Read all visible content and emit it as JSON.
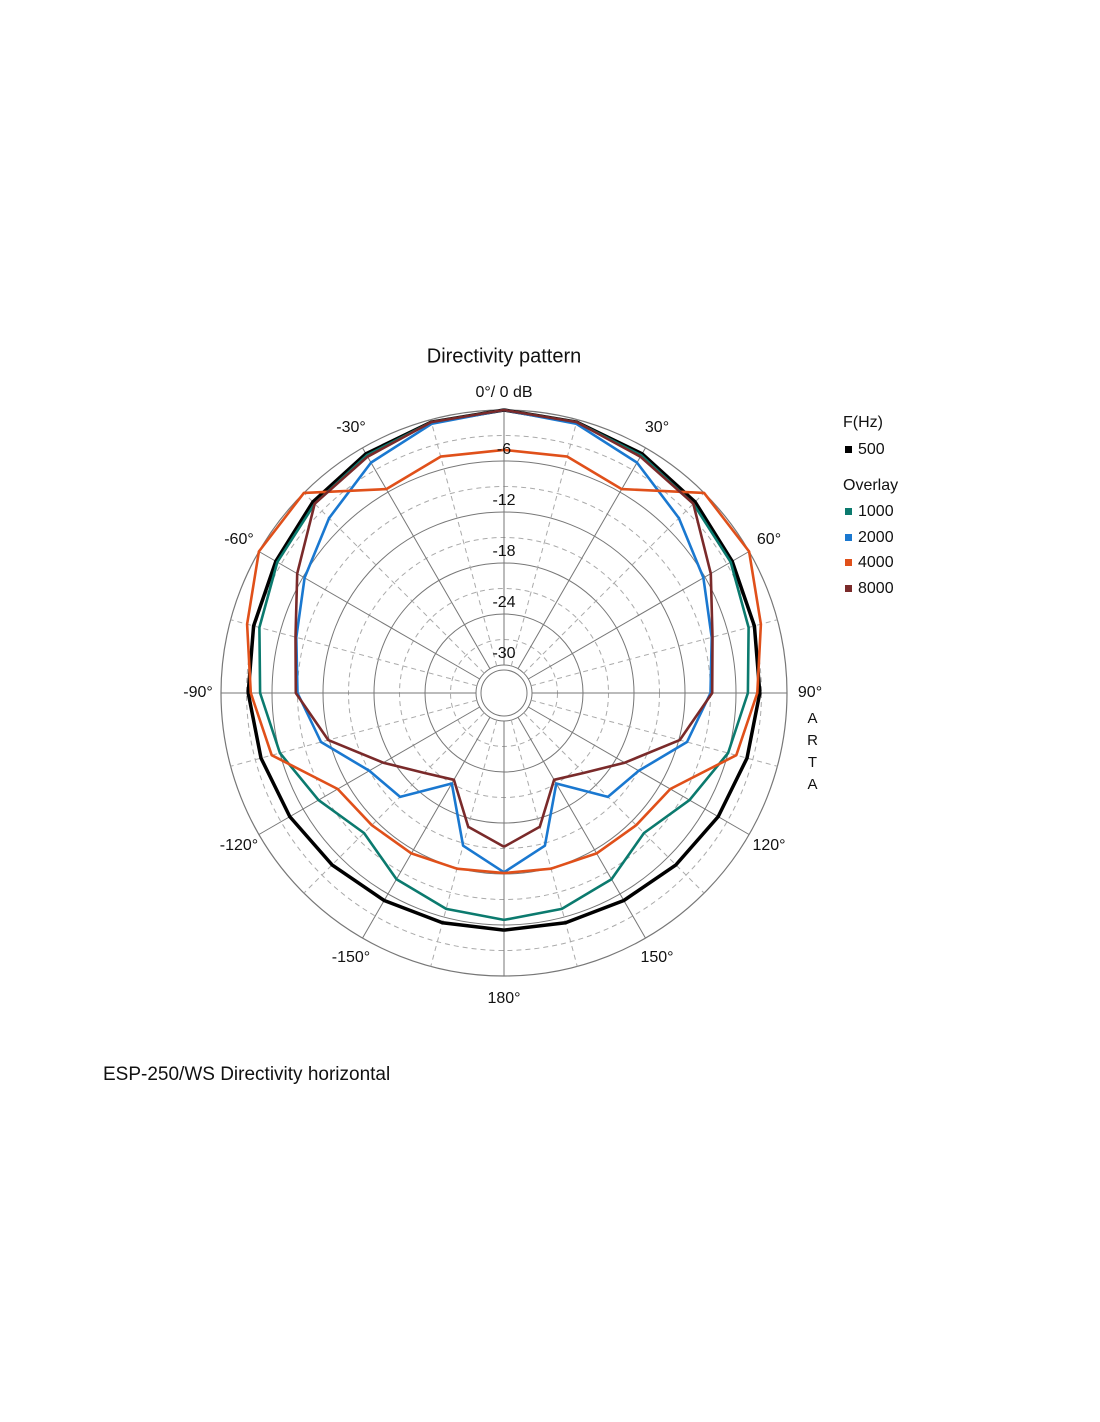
{
  "chart_data": {
    "type": "polar",
    "title": "Directivity pattern",
    "footer": "ESP-250/WS  Directivity horizontal",
    "side_label": "ARTA",
    "legend_title": "F(Hz)",
    "overlay_label": "Overlay",
    "rlim": [
      -30,
      0
    ],
    "rticks": [
      -6,
      -12,
      -18,
      -24,
      -30
    ],
    "theta_ticks": [
      {
        "value": 0,
        "label": "0°/ 0 dB"
      },
      {
        "value": 30,
        "label": "30°"
      },
      {
        "value": 60,
        "label": "60°"
      },
      {
        "value": 90,
        "label": "90°"
      },
      {
        "value": 120,
        "label": "120°"
      },
      {
        "value": 150,
        "label": "150°"
      },
      {
        "value": 180,
        "label": "180°"
      },
      {
        "value": -150,
        "label": "-150°"
      },
      {
        "value": -120,
        "label": "-120°"
      },
      {
        "value": -90,
        "label": "-90°"
      },
      {
        "value": -60,
        "label": "-60°"
      },
      {
        "value": -30,
        "label": "-30°"
      }
    ],
    "theta": [
      -180,
      -165,
      -150,
      -135,
      -120,
      -105,
      -90,
      -75,
      -60,
      -45,
      -30,
      -15,
      0,
      15,
      30,
      45,
      60,
      75,
      90,
      105,
      120,
      135,
      150,
      165,
      180
    ],
    "series": [
      {
        "name": "500",
        "color": "#000000",
        "values": [
          -5.4,
          -5.3,
          -5.1,
          -4.7,
          -4.2,
          -3.7,
          -3.2,
          -2.8,
          -2.3,
          -1.5,
          -0.8,
          -0.3,
          0,
          -0.3,
          -0.8,
          -1.5,
          -2.3,
          -2.8,
          -3.2,
          -3.7,
          -4.2,
          -4.7,
          -5.1,
          -5.3,
          -5.4
        ]
      },
      {
        "name": "1000",
        "color": "#0b7a6e",
        "values": [
          -6.6,
          -7,
          -8,
          -10,
          -8.1,
          -6,
          -4.6,
          -3.5,
          -2.5,
          -1.8,
          -1,
          -0.3,
          0,
          -0.3,
          -1,
          -1.8,
          -2.5,
          -3.5,
          -4.6,
          -6,
          -8.1,
          -10,
          -8,
          -7,
          -6.6
        ]
      },
      {
        "name": "2000",
        "color": "#1a78d0",
        "values": [
          -12.2,
          -14.7,
          -21,
          -16,
          -15,
          -11,
          -9,
          -8,
          -6.2,
          -4.2,
          -2,
          -0.5,
          0,
          -0.5,
          -2,
          -4.2,
          -6.2,
          -8,
          -9,
          -11,
          -15,
          -16,
          -21,
          -14.7,
          -12.2
        ]
      },
      {
        "name": "4000",
        "color": "#e0501a",
        "values": [
          -12.1,
          -11.9,
          -11.5,
          -11.3,
          -10.7,
          -5,
          -3.5,
          -2,
          0,
          0,
          -5.6,
          -4.5,
          -4.7,
          -4.5,
          -5.6,
          0,
          0,
          -2,
          -3.5,
          -5,
          -10.7,
          -11.3,
          -11.5,
          -11.9,
          -12.1
        ]
      },
      {
        "name": "8000",
        "color": "#7a2a2a",
        "values": [
          -15.2,
          -17,
          -21.5,
          -20,
          -16.9,
          -11.9,
          -8.8,
          -7.9,
          -5.2,
          -1.8,
          -1.2,
          -0.3,
          0,
          -0.3,
          -1.2,
          -1.8,
          -5.2,
          -7.9,
          -8.8,
          -11.9,
          -16.9,
          -20,
          -21.5,
          -17,
          -15.2
        ]
      }
    ]
  }
}
